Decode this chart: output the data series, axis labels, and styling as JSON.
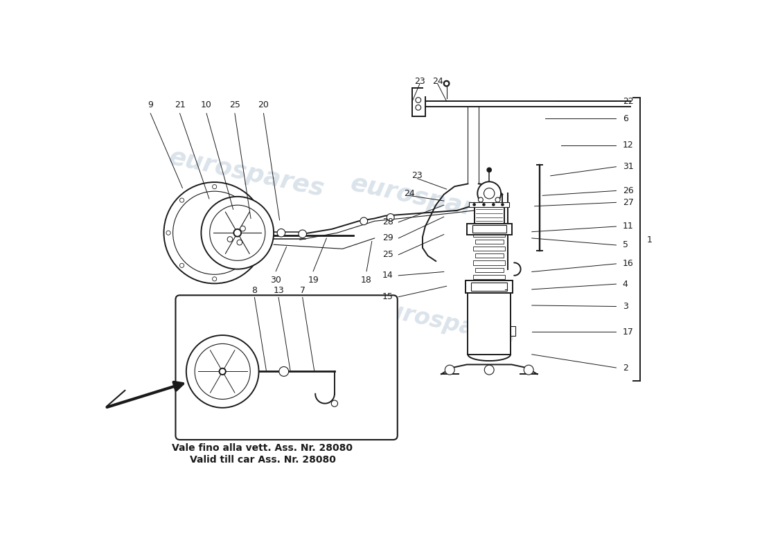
{
  "bg_color": "#ffffff",
  "line_color": "#1a1a1a",
  "watermark_color": "#c8d4e0",
  "watermark_text": "eurospares",
  "caption_line1": "Vale fino alla vett. Ass. Nr. 28080",
  "caption_line2": "Valid till car Ass. Nr. 28080",
  "right_bracket_labels": [
    [
      "22",
      10.3,
      7.3
    ],
    [
      "6",
      10.3,
      7.0
    ],
    [
      "12",
      10.3,
      6.5
    ],
    [
      "31",
      10.3,
      6.1
    ],
    [
      "26",
      10.3,
      5.65
    ],
    [
      "27",
      10.3,
      5.45
    ],
    [
      "11",
      10.3,
      5.0
    ],
    [
      "5",
      10.3,
      4.65
    ],
    [
      "16",
      10.3,
      4.3
    ],
    [
      "4",
      10.3,
      3.9
    ],
    [
      "3",
      10.3,
      3.5
    ],
    [
      "17",
      10.3,
      3.0
    ],
    [
      "2",
      10.3,
      2.3
    ],
    [
      "1",
      10.3,
      4.8
    ]
  ],
  "top_callout_labels": [
    [
      "23",
      6.05,
      7.72
    ],
    [
      "24",
      6.38,
      7.72
    ],
    [
      "23",
      6.0,
      5.95
    ],
    [
      "24",
      5.85,
      5.62
    ]
  ],
  "left_callout_labels": [
    [
      "9",
      0.55,
      6.55
    ],
    [
      "21",
      1.25,
      6.95
    ],
    [
      "10",
      1.75,
      6.95
    ],
    [
      "25",
      2.25,
      6.95
    ],
    [
      "20",
      2.75,
      6.95
    ],
    [
      "30",
      3.15,
      4.15
    ],
    [
      "19",
      3.85,
      4.15
    ],
    [
      "18",
      5.05,
      4.15
    ],
    [
      "28",
      5.55,
      5.05
    ],
    [
      "29",
      5.55,
      4.75
    ],
    [
      "25",
      5.55,
      4.45
    ],
    [
      "14",
      5.55,
      4.08
    ],
    [
      "15",
      5.55,
      3.68
    ]
  ],
  "inset_labels": [
    [
      "8",
      2.95,
      3.72
    ],
    [
      "13",
      3.4,
      3.72
    ],
    [
      "7",
      3.85,
      3.72
    ]
  ]
}
